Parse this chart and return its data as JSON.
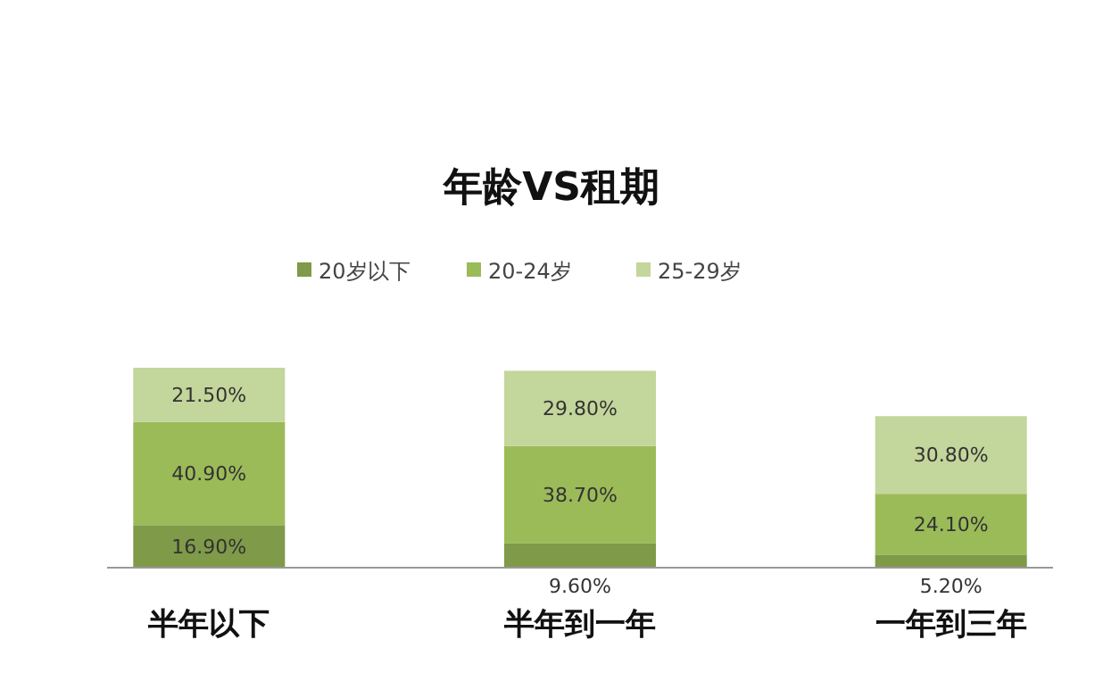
{
  "chart_data": {
    "type": "bar",
    "title": "年龄VS租期",
    "categories": [
      "半年以下",
      "半年到一年",
      "一年到三年"
    ],
    "stacked": true,
    "legend": "top",
    "data_labels": false,
    "series": [
      {
        "name": "20岁以下",
        "color": "#7f9a48",
        "values": [
          16.9,
          9.6,
          5.2
        ],
        "value_labels": [
          "16.90%",
          "9.60%",
          "5.20%"
        ]
      },
      {
        "name": "20-24岁",
        "color": "#9bbb59",
        "values": [
          40.9,
          38.7,
          24.1
        ],
        "value_labels": [
          "40.90%",
          "38.70%",
          "24.10%"
        ]
      },
      {
        "name": "25-29岁",
        "color": "#c3d69b",
        "values": [
          21.5,
          29.8,
          30.8
        ],
        "value_labels": [
          "21.50%",
          "29.80%",
          "30.80%"
        ]
      }
    ]
  }
}
